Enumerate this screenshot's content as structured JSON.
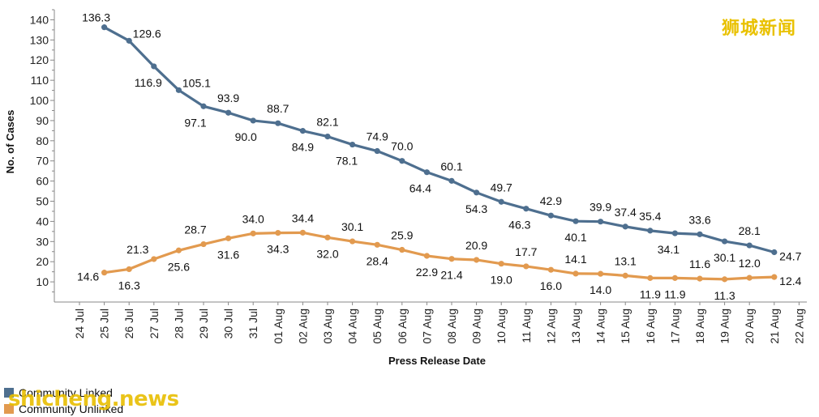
{
  "chart_data": {
    "type": "line",
    "xlabel": "Press Release Date",
    "ylabel": "No. of Cases",
    "ylim": [
      0,
      145
    ],
    "yticks": [
      10,
      20,
      30,
      40,
      50,
      60,
      70,
      80,
      90,
      100,
      110,
      120,
      130,
      140
    ],
    "x": [
      "24 Jul",
      "25 Jul",
      "26 Jul",
      "27 Jul",
      "28 Jul",
      "29 Jul",
      "30 Jul",
      "31 Jul",
      "01 Aug",
      "02 Aug",
      "03 Aug",
      "04 Aug",
      "05 Aug",
      "06 Aug",
      "07 Aug",
      "08 Aug",
      "09 Aug",
      "10 Aug",
      "11 Aug",
      "12 Aug",
      "13 Aug",
      "14 Aug",
      "15 Aug",
      "16 Aug",
      "17 Aug",
      "18 Aug",
      "19 Aug",
      "20 Aug",
      "21 Aug",
      "22 Aug"
    ],
    "series": [
      {
        "name": "Community Linked",
        "color": "#4e6f8f",
        "values": [
          null,
          136.3,
          129.6,
          116.9,
          105.1,
          97.1,
          93.9,
          90.0,
          88.7,
          84.9,
          82.1,
          78.1,
          74.9,
          70.0,
          64.4,
          60.1,
          54.3,
          49.7,
          46.3,
          42.9,
          40.1,
          39.9,
          37.4,
          35.4,
          34.1,
          33.6,
          30.1,
          28.1,
          24.7,
          null
        ]
      },
      {
        "name": "Community Unlinked",
        "color": "#e29a4f",
        "values": [
          null,
          14.6,
          16.3,
          21.3,
          25.6,
          28.7,
          31.6,
          34.0,
          34.3,
          34.4,
          32.0,
          30.1,
          28.4,
          25.9,
          22.9,
          21.4,
          20.9,
          19.0,
          17.7,
          16.0,
          14.1,
          14.0,
          13.1,
          11.9,
          11.9,
          11.6,
          11.3,
          12.0,
          12.4,
          null
        ]
      }
    ],
    "grid": false,
    "legend": "bottom-left"
  },
  "watermarks": {
    "top_right": "狮城新闻",
    "bottom_left": "shicheng.news"
  }
}
